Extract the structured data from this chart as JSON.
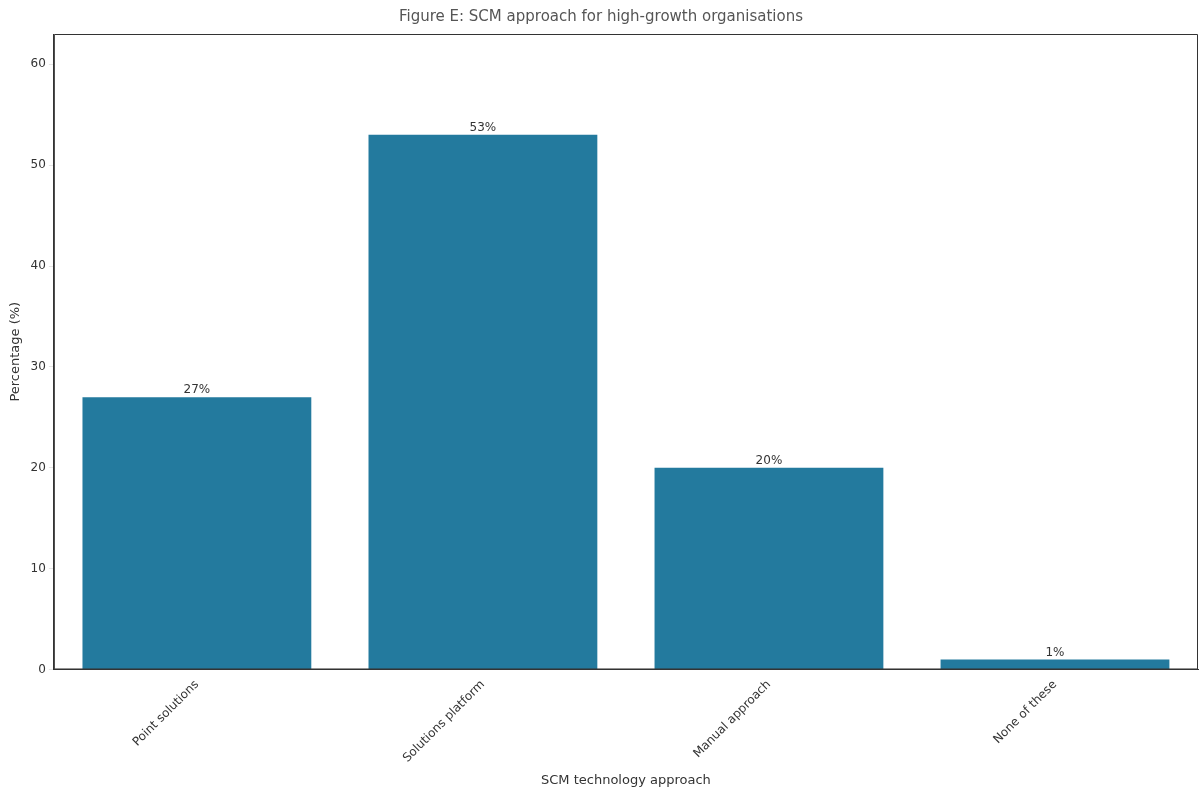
{
  "chart_data": {
    "type": "bar",
    "title": "Figure E: SCM approach for high-growth organisations",
    "xlabel": "SCM technology approach",
    "ylabel": "Percentage (%)",
    "categories": [
      "Point solutions",
      "Solutions platform",
      "Manual approach",
      "None of these"
    ],
    "values": [
      27,
      53,
      20,
      1
    ],
    "color": "#237a9e",
    "value_labels": [
      "27%",
      "53%",
      "20%",
      "1%"
    ],
    "ylim": [
      0,
      63
    ],
    "yticks": [
      0,
      10,
      20,
      30,
      40,
      50,
      60
    ],
    "grid": false,
    "legend": false
  }
}
